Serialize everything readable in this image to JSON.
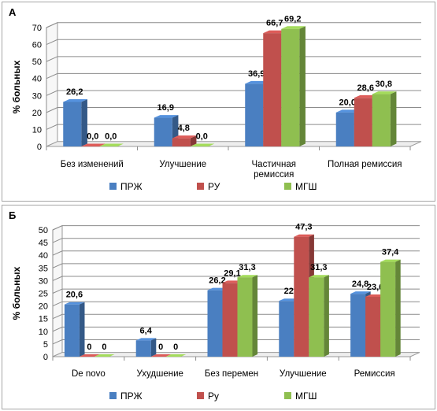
{
  "chart_data": [
    {
      "panel_label": "А",
      "type": "bar",
      "ylabel": "% больных",
      "ylim": [
        0,
        70
      ],
      "yticks": [
        "0",
        "10",
        "20",
        "30",
        "40",
        "50",
        "60",
        "70"
      ],
      "categories": [
        [
          "Без изменений"
        ],
        [
          "Улучшение"
        ],
        [
          "Частичная",
          "ремиссия"
        ],
        [
          "Полная ремиссия"
        ]
      ],
      "series": [
        {
          "name": "ПРЖ",
          "color": "#4a7fc1",
          "values": [
            26.2,
            16.9,
            36.9,
            20.0
          ],
          "labels": [
            "26,2",
            "16,9",
            "36,9",
            "20,0"
          ]
        },
        {
          "name": "РУ",
          "color": "#c0504d",
          "values": [
            0.0,
            4.8,
            66.7,
            28.6
          ],
          "labels": [
            "0,0",
            "4,8",
            "66,7",
            "28,6"
          ]
        },
        {
          "name": "МГШ",
          "color": "#8fbf50",
          "values": [
            0.0,
            0.0,
            69.2,
            30.8
          ],
          "labels": [
            "0,0",
            "0,0",
            "69,2",
            "30,8"
          ]
        }
      ],
      "legend_position": "bottom",
      "grid": true
    },
    {
      "panel_label": "Б",
      "type": "bar",
      "ylabel": "% больных",
      "ylim": [
        0,
        50
      ],
      "yticks": [
        "0",
        "5",
        "10",
        "15",
        "20",
        "25",
        "30",
        "35",
        "40",
        "45",
        "50"
      ],
      "categories": [
        [
          "De novo"
        ],
        [
          "Ухудшение"
        ],
        [
          "Без перемен"
        ],
        [
          "Улучшение"
        ],
        [
          "Ремиссия"
        ]
      ],
      "series": [
        {
          "name": "ПРЖ",
          "color": "#4a7fc1",
          "values": [
            20.6,
            6.4,
            26.2,
            22,
            24.8
          ],
          "labels": [
            "20,6",
            "6,4",
            "26,2",
            "22",
            "24,8"
          ]
        },
        {
          "name": "Ру",
          "color": "#c0504d",
          "values": [
            0,
            0,
            29.1,
            47.3,
            23.6
          ],
          "labels": [
            "0",
            "0",
            "29,1",
            "47,3",
            "23,6"
          ]
        },
        {
          "name": "МГШ",
          "color": "#8fbf50",
          "values": [
            0,
            0,
            31.3,
            31.3,
            37.4
          ],
          "labels": [
            "0",
            "0",
            "31,3",
            "31,3",
            "37,4"
          ]
        }
      ],
      "legend_position": "bottom",
      "grid": true
    }
  ]
}
